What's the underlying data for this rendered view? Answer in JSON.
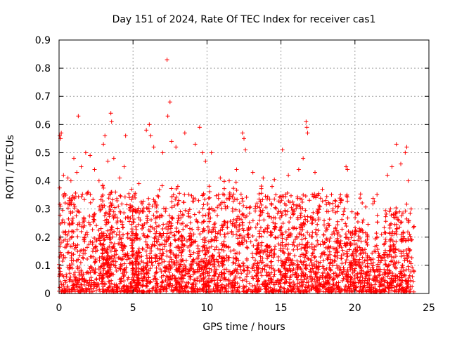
{
  "chart_data": {
    "type": "scatter",
    "title": "Day 151 of 2024, Rate Of TEC Index for receiver cas1",
    "xlabel": "GPS time / hours",
    "ylabel": "ROTI / TECUs",
    "xlim": [
      0,
      25
    ],
    "ylim": [
      0,
      0.9
    ],
    "xticks": [
      0,
      5,
      10,
      15,
      20,
      25
    ],
    "xtick_labels": [
      "0",
      "5",
      "10",
      "15",
      "20",
      "25"
    ],
    "yticks": [
      0,
      0.1,
      0.2,
      0.3,
      0.4,
      0.5,
      0.6,
      0.7,
      0.8,
      0.9
    ],
    "ytick_labels": [
      "0",
      "0.1",
      "0.2",
      "0.3",
      "0.4",
      "0.5",
      "0.6",
      "0.7",
      "0.8",
      "0.9"
    ],
    "grid": true,
    "marker": "plus",
    "color": "#ff0000",
    "series": [
      {
        "name": "ROTI",
        "points": [
          [
            0.05,
            0.56
          ],
          [
            0.1,
            0.55
          ],
          [
            0.15,
            0.57
          ],
          [
            0.1,
            0.31
          ],
          [
            0.3,
            0.42
          ],
          [
            0.6,
            0.41
          ],
          [
            0.8,
            0.4
          ],
          [
            1.0,
            0.48
          ],
          [
            1.2,
            0.43
          ],
          [
            1.3,
            0.63
          ],
          [
            1.5,
            0.45
          ],
          [
            1.8,
            0.5
          ],
          [
            2.1,
            0.49
          ],
          [
            2.4,
            0.44
          ],
          [
            2.7,
            0.4
          ],
          [
            3.0,
            0.53
          ],
          [
            3.1,
            0.56
          ],
          [
            3.3,
            0.47
          ],
          [
            3.5,
            0.64
          ],
          [
            3.55,
            0.61
          ],
          [
            3.7,
            0.48
          ],
          [
            4.1,
            0.41
          ],
          [
            4.4,
            0.45
          ],
          [
            4.5,
            0.56
          ],
          [
            4.9,
            0.37
          ],
          [
            5.4,
            0.39
          ],
          [
            5.9,
            0.58
          ],
          [
            6.1,
            0.6
          ],
          [
            6.2,
            0.56
          ],
          [
            6.4,
            0.52
          ],
          [
            7.0,
            0.5
          ],
          [
            7.3,
            0.83
          ],
          [
            7.35,
            0.63
          ],
          [
            7.5,
            0.68
          ],
          [
            7.6,
            0.54
          ],
          [
            7.9,
            0.52
          ],
          [
            8.5,
            0.57
          ],
          [
            9.2,
            0.53
          ],
          [
            9.5,
            0.59
          ],
          [
            9.7,
            0.5
          ],
          [
            9.9,
            0.47
          ],
          [
            10.3,
            0.5
          ],
          [
            10.9,
            0.41
          ],
          [
            11.5,
            0.4
          ],
          [
            12.0,
            0.44
          ],
          [
            12.4,
            0.57
          ],
          [
            12.5,
            0.55
          ],
          [
            12.6,
            0.51
          ],
          [
            13.1,
            0.43
          ],
          [
            13.8,
            0.41
          ],
          [
            14.4,
            0.38
          ],
          [
            15.1,
            0.51
          ],
          [
            15.5,
            0.42
          ],
          [
            16.2,
            0.44
          ],
          [
            16.5,
            0.48
          ],
          [
            16.7,
            0.61
          ],
          [
            16.75,
            0.59
          ],
          [
            16.8,
            0.57
          ],
          [
            17.3,
            0.43
          ],
          [
            17.8,
            0.37
          ],
          [
            18.5,
            0.32
          ],
          [
            19.1,
            0.33
          ],
          [
            19.4,
            0.45
          ],
          [
            19.5,
            0.44
          ],
          [
            19.8,
            0.29
          ],
          [
            20.3,
            0.23
          ],
          [
            20.8,
            0.18
          ],
          [
            21.3,
            0.15
          ],
          [
            21.8,
            0.21
          ],
          [
            22.2,
            0.42
          ],
          [
            22.5,
            0.45
          ],
          [
            22.8,
            0.53
          ],
          [
            23.1,
            0.46
          ],
          [
            23.4,
            0.5
          ],
          [
            23.5,
            0.52
          ],
          [
            23.6,
            0.4
          ],
          [
            23.8,
            0.3
          ]
        ]
      }
    ],
    "generated_cloud_note": "dense field of ~0.0–0.35 ROTI values across 0–24 h, thinning near 21–22 h"
  }
}
